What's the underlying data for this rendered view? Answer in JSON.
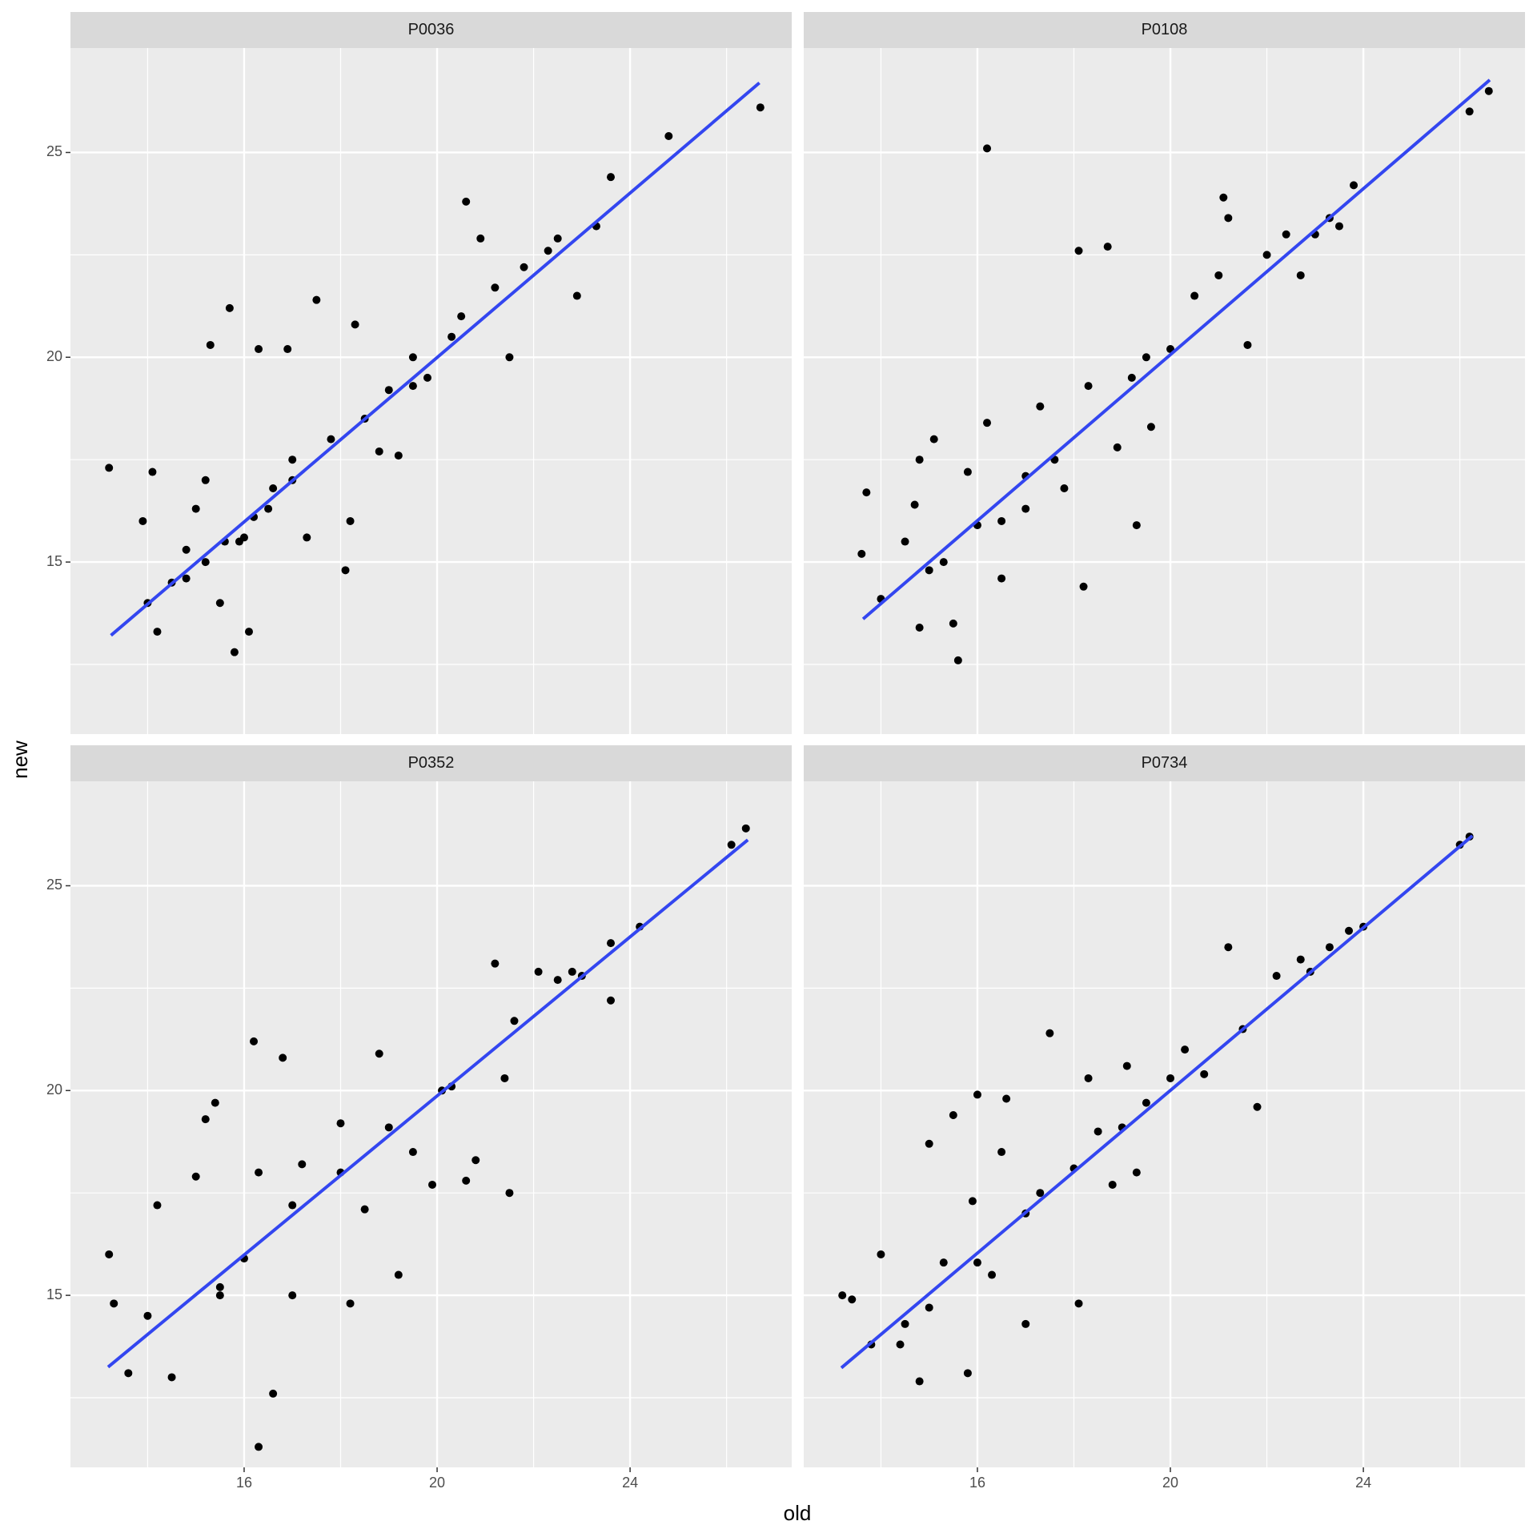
{
  "chart_data": {
    "type": "scatter",
    "xlabel": "old",
    "ylabel": "new",
    "xlim": [
      12.4,
      27.35
    ],
    "ylim": [
      10.8,
      27.55
    ],
    "xticks": [
      16,
      20,
      24
    ],
    "yticks": [
      15,
      20,
      25
    ],
    "minor_xticks": [
      14,
      18,
      22,
      26
    ],
    "minor_yticks": [
      12.5,
      17.5,
      22.5
    ],
    "grid": true,
    "facets": [
      {
        "title": "P0036",
        "points": {
          "color": "#000000",
          "x": [
            13.2,
            13.9,
            14.1,
            14.0,
            14.2,
            14.5,
            14.8,
            15.0,
            15.2,
            15.3,
            15.7,
            15.5,
            15.8,
            15.9,
            16.1,
            16.3,
            16.6,
            16.9,
            17.0,
            17.3,
            17.5,
            17.8,
            18.1,
            18.2,
            18.3,
            18.5,
            18.8,
            19.0,
            19.2,
            19.5,
            19.8,
            20.3,
            20.5,
            20.6,
            20.9,
            21.2,
            21.5,
            21.8,
            22.3,
            22.5,
            22.9,
            23.3,
            23.6,
            24.8,
            26.7,
            16.0,
            16.5,
            15.2,
            17.0,
            19.5,
            14.8,
            15.6,
            16.2
          ],
          "y": [
            17.3,
            16.0,
            17.2,
            14.0,
            13.3,
            14.5,
            15.3,
            16.3,
            17.0,
            20.3,
            21.2,
            14.0,
            12.8,
            15.5,
            13.3,
            20.2,
            16.8,
            20.2,
            17.5,
            15.6,
            21.4,
            18.0,
            14.8,
            16.0,
            20.8,
            18.5,
            17.7,
            19.2,
            17.6,
            20.0,
            19.5,
            20.5,
            21.0,
            23.8,
            22.9,
            21.7,
            20.0,
            22.2,
            22.6,
            22.9,
            21.5,
            23.2,
            24.4,
            25.4,
            26.1,
            15.6,
            16.3,
            15.0,
            17.0,
            19.3,
            14.6,
            15.5,
            16.1
          ]
        },
        "fit": {
          "color": "#3346f0",
          "x": [
            13.24,
            26.68
          ],
          "y": [
            13.21,
            26.7
          ]
        }
      },
      {
        "title": "P0108",
        "points": {
          "color": "#000000",
          "x": [
            13.6,
            13.7,
            14.0,
            14.5,
            14.7,
            14.8,
            14.8,
            15.1,
            15.3,
            15.5,
            15.6,
            15.8,
            16.2,
            16.2,
            16.5,
            17.0,
            17.3,
            17.6,
            17.8,
            18.1,
            18.2,
            18.3,
            18.7,
            18.9,
            19.2,
            19.3,
            19.5,
            19.6,
            20.0,
            20.5,
            21.0,
            21.1,
            21.2,
            21.6,
            22.0,
            22.4,
            22.7,
            23.0,
            23.3,
            23.5,
            23.8,
            26.2,
            26.6,
            15.0,
            16.0,
            17.0,
            16.5
          ],
          "y": [
            15.2,
            16.7,
            14.1,
            15.5,
            16.4,
            17.5,
            13.4,
            18.0,
            15.0,
            13.5,
            12.6,
            17.2,
            25.1,
            18.4,
            14.6,
            16.3,
            18.8,
            17.5,
            16.8,
            22.6,
            14.4,
            19.3,
            22.7,
            17.8,
            19.5,
            15.9,
            20.0,
            18.3,
            20.2,
            21.5,
            22.0,
            23.9,
            23.4,
            20.3,
            22.5,
            23.0,
            22.0,
            23.0,
            23.4,
            23.2,
            24.2,
            26.0,
            26.5,
            14.8,
            15.9,
            17.1,
            16.0
          ]
        },
        "fit": {
          "color": "#3346f0",
          "x": [
            13.63,
            26.62
          ],
          "y": [
            13.61,
            26.77
          ]
        }
      },
      {
        "title": "P0352",
        "points": {
          "color": "#000000",
          "x": [
            13.2,
            13.3,
            13.6,
            14.0,
            14.2,
            14.5,
            15.0,
            15.2,
            15.4,
            15.5,
            16.2,
            16.3,
            16.3,
            16.6,
            16.8,
            17.0,
            17.2,
            18.0,
            18.2,
            18.5,
            18.8,
            19.0,
            19.2,
            19.5,
            19.9,
            20.1,
            20.3,
            20.6,
            20.8,
            21.2,
            21.4,
            21.5,
            21.6,
            22.1,
            22.5,
            22.8,
            23.0,
            23.6,
            23.6,
            24.2,
            26.1,
            26.4,
            15.5,
            16.0,
            17.0,
            18.0
          ],
          "y": [
            16.0,
            14.8,
            13.1,
            14.5,
            17.2,
            13.0,
            17.9,
            19.3,
            19.7,
            15.0,
            21.2,
            18.0,
            11.3,
            12.6,
            20.8,
            15.0,
            18.2,
            19.2,
            14.8,
            17.1,
            20.9,
            19.1,
            15.5,
            18.5,
            17.7,
            20.0,
            20.1,
            17.8,
            18.3,
            23.1,
            20.3,
            17.5,
            21.7,
            22.9,
            22.7,
            22.9,
            22.8,
            23.6,
            22.2,
            24.0,
            26.0,
            26.4,
            15.2,
            15.9,
            17.2,
            18.0
          ]
        },
        "fit": {
          "color": "#3346f0",
          "x": [
            13.18,
            26.44
          ],
          "y": [
            13.25,
            26.12
          ]
        }
      },
      {
        "title": "P0734",
        "points": {
          "color": "#000000",
          "x": [
            13.2,
            13.4,
            13.8,
            14.0,
            14.4,
            14.8,
            15.0,
            15.3,
            15.5,
            15.8,
            15.9,
            16.0,
            16.3,
            16.5,
            16.6,
            17.0,
            17.3,
            17.5,
            18.1,
            18.3,
            18.5,
            18.8,
            19.1,
            19.3,
            19.5,
            20.0,
            20.3,
            20.7,
            21.2,
            21.5,
            21.8,
            22.2,
            22.7,
            22.9,
            23.3,
            23.7,
            24.0,
            26.0,
            26.2,
            15.0,
            16.0,
            17.0,
            18.0,
            19.0,
            14.5
          ],
          "y": [
            15.0,
            14.9,
            13.8,
            16.0,
            13.8,
            12.9,
            18.7,
            15.8,
            19.4,
            13.1,
            17.3,
            19.9,
            15.5,
            18.5,
            19.8,
            14.3,
            17.5,
            21.4,
            14.8,
            20.3,
            19.0,
            17.7,
            20.6,
            18.0,
            19.7,
            20.3,
            21.0,
            20.4,
            23.5,
            21.5,
            19.6,
            22.8,
            23.2,
            22.9,
            23.5,
            23.9,
            24.0,
            26.0,
            26.2,
            14.7,
            15.8,
            17.0,
            18.1,
            19.1,
            14.3
          ]
        },
        "fit": {
          "color": "#3346f0",
          "x": [
            13.18,
            26.26
          ],
          "y": [
            13.23,
            26.22
          ]
        }
      }
    ]
  }
}
